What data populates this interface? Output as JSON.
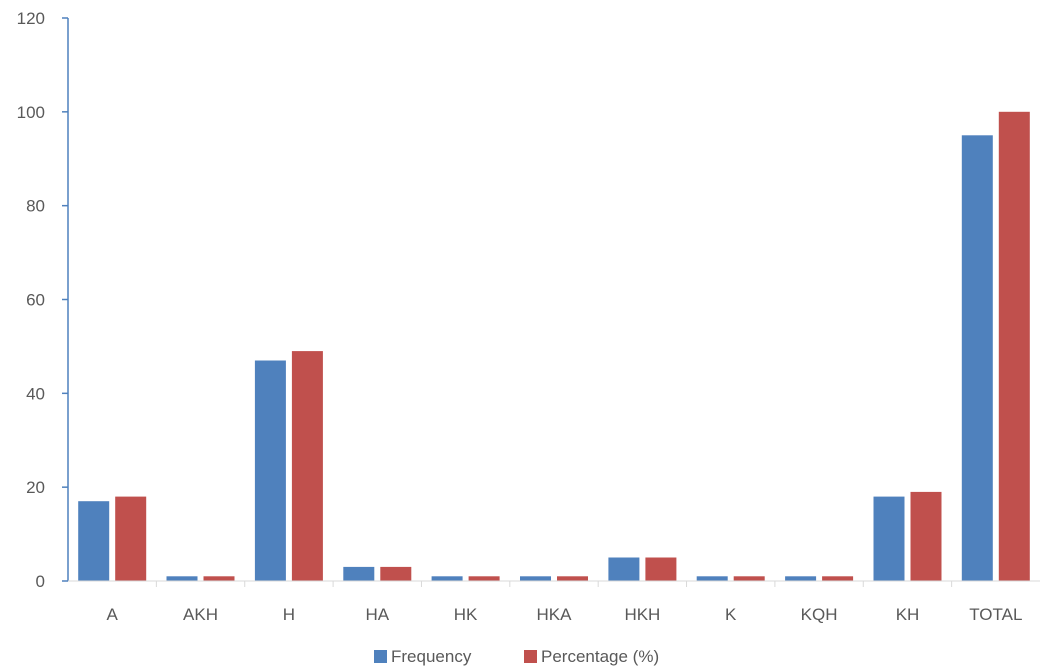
{
  "chart_data": {
    "type": "bar",
    "categories": [
      "A",
      "AKH",
      "H",
      "HA",
      "HK",
      "HKA",
      "HKH",
      "K",
      "KQH",
      "KH",
      "TOTAL"
    ],
    "series": [
      {
        "name": "Frequency",
        "color": "#4F81BD",
        "values": [
          17,
          1,
          47,
          3,
          1,
          1,
          5,
          1,
          1,
          18,
          95
        ]
      },
      {
        "name": "Percentage (%)",
        "color": "#C0504D",
        "values": [
          18,
          1,
          49,
          3,
          1,
          1,
          5,
          1,
          1,
          19,
          100
        ]
      }
    ],
    "yticks": [
      "0",
      "20",
      "40",
      "60",
      "80",
      "100",
      "120"
    ],
    "ylim": [
      0,
      120
    ],
    "grid": false,
    "legend_position": "bottom",
    "axis_color": "#4F81BD"
  }
}
